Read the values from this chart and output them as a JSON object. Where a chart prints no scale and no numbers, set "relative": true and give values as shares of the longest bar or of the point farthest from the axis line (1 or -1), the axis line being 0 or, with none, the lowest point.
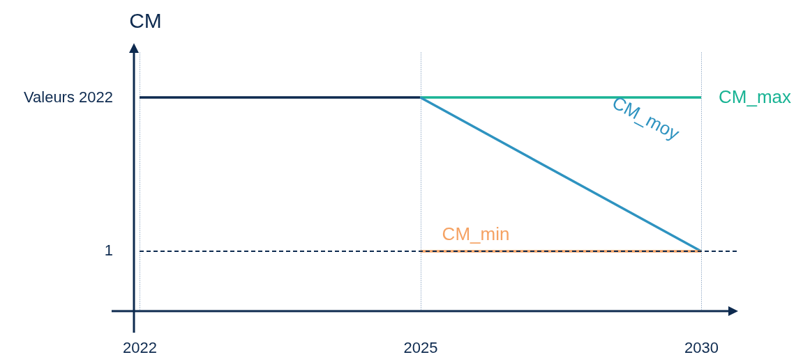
{
  "chart_data": {
    "type": "line",
    "relative": true,
    "ylabel": "CM",
    "categories": [
      "2022",
      "2025",
      "2030"
    ],
    "series": [
      {
        "color": "#0d2a4f",
        "values": [
          1,
          1,
          null
        ]
      },
      {
        "name": "CM_max",
        "color": "#19b394",
        "values": [
          null,
          1,
          1
        ]
      },
      {
        "name": "CM_moy",
        "color": "#2e93c0",
        "values": [
          null,
          1,
          0.28
        ]
      },
      {
        "name": "CM_min",
        "color": "#f5a263",
        "values": [
          null,
          0.28,
          0.28
        ]
      }
    ],
    "ref_lines": [
      {
        "axis": "y",
        "value": 0.28,
        "color": "#0d2a4f",
        "line_style": "dashed"
      }
    ],
    "annotations": [
      "Valeurs 2022",
      "1"
    ],
    "grid": "x",
    "line_style": "solid"
  }
}
